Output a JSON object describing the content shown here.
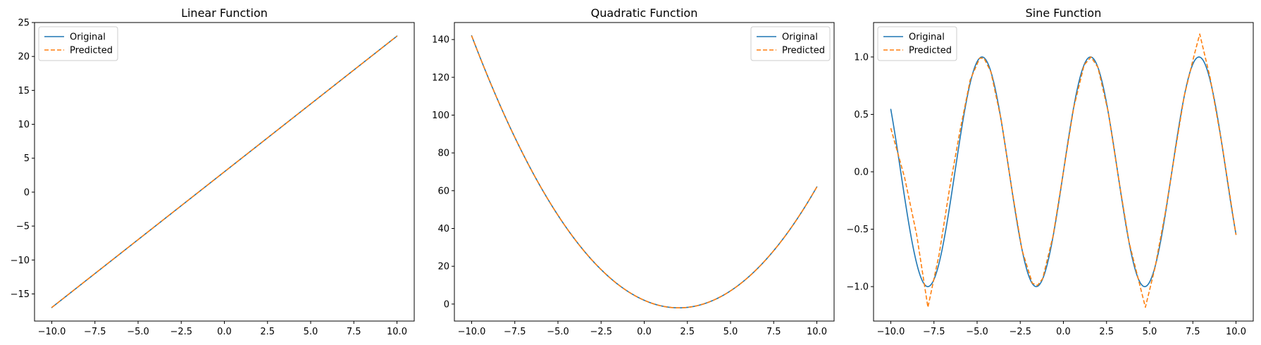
{
  "chart_data": [
    {
      "type": "line",
      "title": "Linear Function",
      "xlim": [
        -11.0,
        11.0
      ],
      "ylim": [
        -19.0,
        25.0
      ],
      "xticks": [
        -10.0,
        -7.5,
        -5.0,
        -2.5,
        0.0,
        2.5,
        5.0,
        7.5,
        10.0
      ],
      "yticks": [
        -15,
        -10,
        -5,
        0,
        5,
        10,
        15,
        20,
        25
      ],
      "legend": "upper-left",
      "series": [
        {
          "name": "Original",
          "color": "#1f77b4",
          "dash": "solid",
          "function": "2x + 3",
          "x_range": [
            -10,
            10
          ]
        },
        {
          "name": "Predicted",
          "color": "#ff7f0e",
          "dash": "dashed",
          "function": "2x + 3",
          "x_range": [
            -10,
            10
          ]
        }
      ]
    },
    {
      "type": "line",
      "title": "Quadratic Function",
      "xlim": [
        -11.0,
        11.0
      ],
      "ylim": [
        -9.0,
        149.0
      ],
      "xticks": [
        -10.0,
        -7.5,
        -5.0,
        -2.5,
        0.0,
        2.5,
        5.0,
        7.5,
        10.0
      ],
      "yticks": [
        0,
        20,
        40,
        60,
        80,
        100,
        120,
        140
      ],
      "legend": "upper-right",
      "series": [
        {
          "name": "Original",
          "color": "#1f77b4",
          "dash": "solid",
          "function": "x^2 - 4x + 2",
          "x_range": [
            -10,
            10
          ]
        },
        {
          "name": "Predicted",
          "color": "#ff7f0e",
          "dash": "dashed",
          "function": "x^2 - 4x + 2",
          "x_range": [
            -10,
            10
          ]
        }
      ]
    },
    {
      "type": "line",
      "title": "Sine Function",
      "xlim": [
        -11.0,
        11.0
      ],
      "ylim": [
        -1.3,
        1.3
      ],
      "xticks": [
        -10.0,
        -7.5,
        -5.0,
        -2.5,
        0.0,
        2.5,
        5.0,
        7.5,
        10.0
      ],
      "yticks": [
        -1.0,
        -0.5,
        0.0,
        0.5,
        1.0
      ],
      "legend": "upper-left",
      "series": [
        {
          "name": "Original",
          "color": "#1f77b4",
          "dash": "solid",
          "function": "sin(x)",
          "x_range": [
            -10,
            10
          ]
        },
        {
          "name": "Predicted",
          "color": "#ff7f0e",
          "dash": "dashed",
          "points": [
            [
              -10.0,
              0.38
            ],
            [
              -9.2,
              -0.05
            ],
            [
              -8.5,
              -0.55
            ],
            [
              -7.85,
              -1.18
            ],
            [
              -7.2,
              -0.72
            ],
            [
              -6.6,
              -0.15
            ],
            [
              -6.0,
              0.35
            ],
            [
              -5.4,
              0.8
            ],
            [
              -4.85,
              0.99
            ],
            [
              -4.6,
              0.99
            ],
            [
              -4.2,
              0.87
            ],
            [
              -3.6,
              0.45
            ],
            [
              -3.0,
              -0.14
            ],
            [
              -2.4,
              -0.68
            ],
            [
              -1.8,
              -0.97
            ],
            [
              -1.5,
              -0.99
            ],
            [
              -1.2,
              -0.93
            ],
            [
              -0.6,
              -0.56
            ],
            [
              0.0,
              0.0
            ],
            [
              0.6,
              0.56
            ],
            [
              1.2,
              0.93
            ],
            [
              1.6,
              1.0
            ],
            [
              2.0,
              0.91
            ],
            [
              2.6,
              0.52
            ],
            [
              3.2,
              -0.06
            ],
            [
              3.8,
              -0.61
            ],
            [
              4.75,
              -1.18
            ],
            [
              5.3,
              -0.84
            ],
            [
              5.9,
              -0.36
            ],
            [
              6.5,
              0.2
            ],
            [
              7.0,
              0.66
            ],
            [
              7.55,
              1.0
            ],
            [
              7.9,
              1.2
            ],
            [
              8.5,
              0.82
            ],
            [
              9.2,
              0.23
            ],
            [
              10.0,
              -0.55
            ]
          ]
        }
      ]
    }
  ]
}
